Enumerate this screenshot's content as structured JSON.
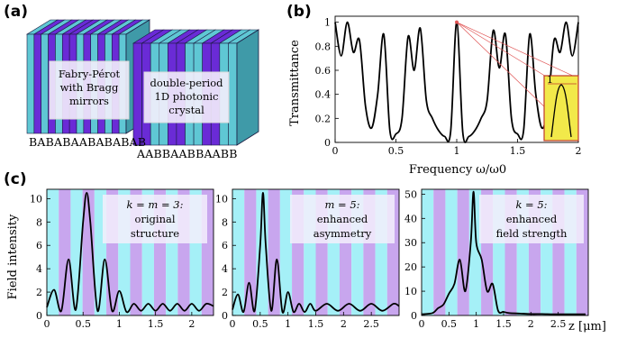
{
  "figure": {
    "panel_labels": [
      "(a)",
      "(b)",
      "(c)"
    ],
    "panel_a": {
      "left_structure": {
        "box_lines": [
          "Fabry-Pérot",
          "with Bragg",
          "mirrors"
        ],
        "sequence": "BABABAABABABAB"
      },
      "right_structure": {
        "box_lines": [
          "double-period",
          "1D photonic",
          "crystal"
        ],
        "sequence": "AABBAABBAABB"
      },
      "colors": {
        "A": "#6a2bd6",
        "B": "#5fc7d4",
        "edge": "#1a1a40"
      }
    },
    "panel_c_ylabel": "Field intensity",
    "panel_c_xunit": "z [μm]",
    "panel_c_insets": [
      {
        "line1": "k = m = 3:",
        "line2": "original",
        "line3": "structure"
      },
      {
        "line1": "m = 5:",
        "line2": "enhanced",
        "line3": "asymmetry"
      },
      {
        "line1": "k = 5:",
        "line2": "enhanced",
        "line3": "field strength"
      }
    ]
  },
  "chart_data": [
    {
      "type": "line",
      "panel": "b",
      "xlabel": "Frequency ω/ω0",
      "ylabel": "Transmittance",
      "xlim": [
        0,
        2
      ],
      "ylim": [
        0,
        1.05
      ],
      "xticks": [
        "0",
        "0.5",
        "1",
        "1.5",
        "2"
      ],
      "yticks": [
        "0",
        "0.2",
        "0.4",
        "0.6",
        "0.8",
        "1"
      ],
      "series": [
        {
          "x": [
            0.0,
            0.05,
            0.1,
            0.15,
            0.2,
            0.25,
            0.3,
            0.35,
            0.4,
            0.45,
            0.5,
            0.55,
            0.6,
            0.65,
            0.7,
            0.75,
            0.8,
            0.85,
            0.9,
            0.95,
            1.0,
            1.05,
            1.1,
            1.15,
            1.2,
            1.25,
            1.3,
            1.35,
            1.4,
            1.45,
            1.5,
            1.55,
            1.6,
            1.65,
            1.7,
            1.75,
            1.8,
            1.85,
            1.9,
            1.95,
            2.0
          ],
          "y": [
            1.0,
            0.72,
            1.0,
            0.75,
            0.85,
            0.3,
            0.12,
            0.4,
            0.9,
            0.1,
            0.07,
            0.2,
            0.88,
            0.6,
            0.95,
            0.35,
            0.2,
            0.1,
            0.05,
            0.09,
            1.0,
            0.08,
            0.05,
            0.1,
            0.2,
            0.35,
            0.93,
            0.62,
            0.9,
            0.2,
            0.07,
            0.1,
            0.9,
            0.4,
            0.12,
            0.3,
            0.85,
            0.75,
            1.0,
            0.72,
            1.0
          ]
        }
      ],
      "inset": {
        "label": "1",
        "note": "zoom around ω/ω0 = 1"
      }
    },
    {
      "type": "line",
      "panel": "c1",
      "xlim": [
        0,
        2.3
      ],
      "ylim": [
        0,
        10.8
      ],
      "xticks": [
        "0",
        "0.5",
        "1",
        "1.5",
        "2"
      ],
      "yticks": [
        "0",
        "2",
        "4",
        "6",
        "8",
        "10"
      ],
      "series": [
        {
          "x": [
            0.0,
            0.1,
            0.2,
            0.3,
            0.4,
            0.5,
            0.55,
            0.6,
            0.7,
            0.8,
            0.9,
            1.0,
            1.1,
            1.2,
            1.3,
            1.4,
            1.5,
            1.6,
            1.7,
            1.8,
            1.9,
            2.0,
            2.1,
            2.2,
            2.3
          ],
          "y": [
            0.7,
            2.2,
            0.4,
            4.8,
            0.5,
            8.0,
            10.5,
            8.0,
            0.4,
            4.8,
            0.4,
            2.1,
            0.3,
            1.0,
            0.4,
            1.0,
            0.4,
            1.0,
            0.4,
            1.0,
            0.4,
            1.0,
            0.4,
            1.0,
            0.8
          ]
        }
      ]
    },
    {
      "type": "line",
      "panel": "c2",
      "xlim": [
        0,
        3
      ],
      "ylim": [
        0,
        10.8
      ],
      "xticks": [
        "0",
        "0.5",
        "1",
        "1.5",
        "2",
        "2.5"
      ],
      "yticks": [
        "0",
        "2",
        "4",
        "6",
        "8",
        "10"
      ],
      "series": [
        {
          "x": [
            0.0,
            0.1,
            0.2,
            0.3,
            0.4,
            0.5,
            0.55,
            0.6,
            0.7,
            0.8,
            0.9,
            1.0,
            1.1,
            1.2,
            1.3,
            1.4,
            1.5,
            1.7,
            1.9,
            2.1,
            2.3,
            2.5,
            2.7,
            2.9,
            3.0
          ],
          "y": [
            0.5,
            1.8,
            0.3,
            2.8,
            0.4,
            6.0,
            10.5,
            6.0,
            0.4,
            4.8,
            0.3,
            2.0,
            0.3,
            1.0,
            0.3,
            1.0,
            0.4,
            1.0,
            0.4,
            1.0,
            0.4,
            1.0,
            0.4,
            1.0,
            0.8
          ]
        }
      ]
    },
    {
      "type": "line",
      "panel": "c3",
      "xlim": [
        0,
        3.05
      ],
      "ylim": [
        0,
        52
      ],
      "xticks": [
        "0",
        "0.5",
        "1",
        "1.5",
        "2",
        "2.5"
      ],
      "yticks": [
        "0",
        "10",
        "20",
        "30",
        "40",
        "50"
      ],
      "series": [
        {
          "x": [
            0.0,
            0.2,
            0.3,
            0.4,
            0.5,
            0.6,
            0.7,
            0.8,
            0.9,
            0.95,
            1.0,
            1.1,
            1.2,
            1.3,
            1.4,
            1.5,
            1.6,
            1.8,
            2.0,
            2.2,
            2.4,
            2.6,
            2.8,
            3.0
          ],
          "y": [
            0.5,
            1.0,
            3.0,
            4.5,
            9.0,
            13.0,
            23.0,
            10.0,
            30.0,
            51.0,
            30.0,
            23.0,
            10.0,
            13.0,
            2.0,
            1.5,
            1.0,
            0.8,
            0.6,
            0.6,
            0.5,
            0.5,
            0.5,
            0.5
          ]
        }
      ]
    }
  ]
}
